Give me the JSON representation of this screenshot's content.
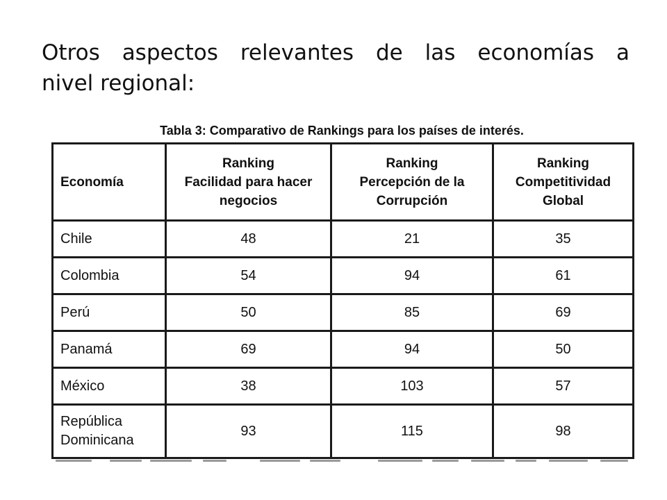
{
  "slide": {
    "heading_words_line1": [
      "Otros",
      "aspectos",
      "relevantes",
      "de",
      "las",
      "economías",
      "a"
    ],
    "heading_line2": "nivel regional:"
  },
  "table": {
    "title": "Tabla 3: Comparativo de Rankings para los países de interés.",
    "headers": [
      [
        "Economía"
      ],
      [
        "Ranking",
        "Facilidad para hacer",
        "negocios"
      ],
      [
        "Ranking",
        "Percepción de la",
        "Corrupción"
      ],
      [
        "Ranking",
        "Competitividad",
        "Global"
      ]
    ],
    "rows": [
      {
        "economy": [
          "Chile"
        ],
        "facilidad": "48",
        "corrupcion": "21",
        "competitividad": "35"
      },
      {
        "economy": [
          "Colombia"
        ],
        "facilidad": "54",
        "corrupcion": "94",
        "competitividad": "61"
      },
      {
        "economy": [
          "Perú"
        ],
        "facilidad": "50",
        "corrupcion": "85",
        "competitividad": "69"
      },
      {
        "economy": [
          "Panamá"
        ],
        "facilidad": "69",
        "corrupcion": "94",
        "competitividad": "50"
      },
      {
        "economy": [
          "México"
        ],
        "facilidad": "38",
        "corrupcion": "103",
        "competitividad": "57"
      },
      {
        "economy": [
          "República",
          "Dominicana"
        ],
        "facilidad": "93",
        "corrupcion": "115",
        "competitividad": "98"
      }
    ]
  }
}
